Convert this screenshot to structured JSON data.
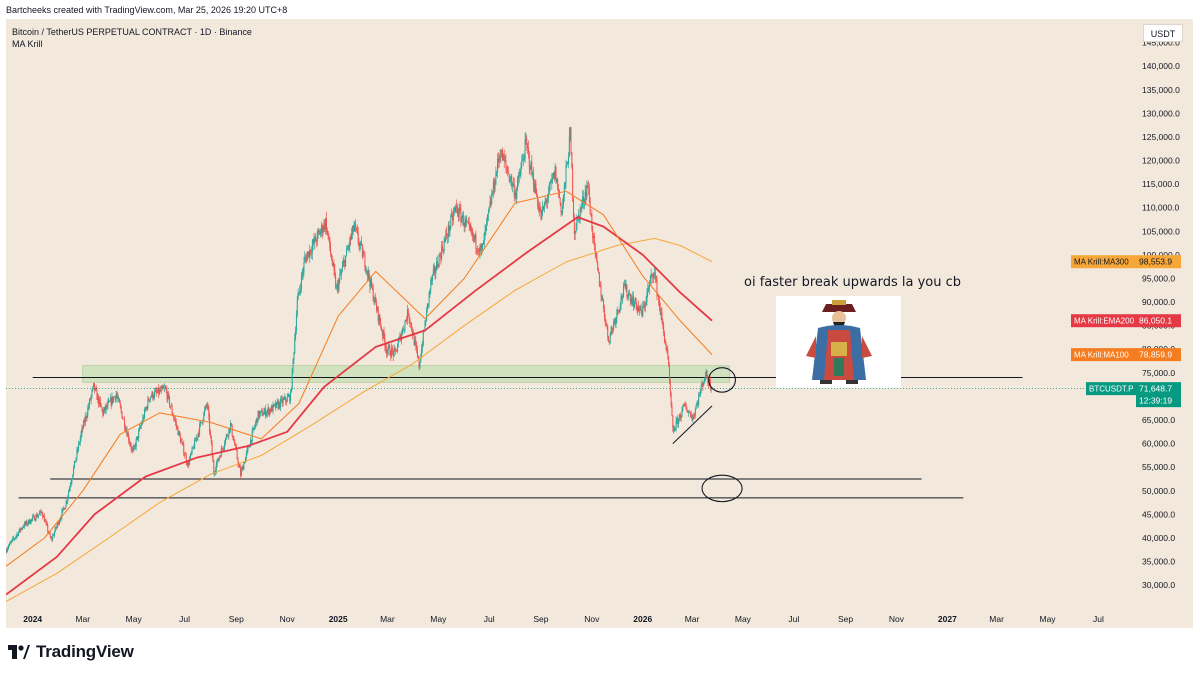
{
  "header": {
    "credit": "Bartcheeks created with TradingView.com, Mar 25, 2026 19:20 UTC+8"
  },
  "chart_info": {
    "symbol_title": "Bitcoin / TetherUS PERPETUAL CONTRACT · 1D · Binance",
    "indicator": "MA Krill",
    "currency": "USDT"
  },
  "annotation": {
    "text": "oi faster break upwards la you cb"
  },
  "footer": {
    "brand": "TradingView"
  },
  "colors": {
    "background": "#f2e8dc",
    "candle_up": "#26a69a",
    "candle_down": "#ef5350",
    "ema200": "#e53946",
    "ma100": "#f57c1f",
    "ma300": "#f7a737",
    "last_price": "#089981",
    "zone": "#c6e0b4"
  },
  "chart_data": {
    "type": "candlestick",
    "title": "Bitcoin / TetherUS PERPETUAL CONTRACT · 1D · Binance",
    "ylabel": "USDT",
    "ylim": [
      26000,
      150000
    ],
    "y_ticks": [
      30000,
      35000,
      40000,
      45000,
      50000,
      55000,
      60000,
      65000,
      70000,
      75000,
      80000,
      85000,
      90000,
      95000,
      100000,
      105000,
      110000,
      115000,
      120000,
      125000,
      130000,
      135000,
      140000,
      145000
    ],
    "y_tick_labels": [
      "30,000.0",
      "35,000.0",
      "40,000.0",
      "45,000.0",
      "50,000.0",
      "55,000.0",
      "60,000.0",
      "65,000.0",
      "70,000.0",
      "75,000.0",
      "80,000.0",
      "85,000.0",
      "90,000.0",
      "95,000.0",
      "100,000.0",
      "105,000.0",
      "110,000.0",
      "115,000.0",
      "120,000.0",
      "125,000.0",
      "130,000.0",
      "135,000.0",
      "140,000.0",
      "145,000.0"
    ],
    "x_ticks": [
      "2024",
      "Mar",
      "May",
      "Jul",
      "Sep",
      "Nov",
      "2025",
      "Mar",
      "May",
      "Jul",
      "Sep",
      "Nov",
      "2026",
      "Mar",
      "May",
      "Jul",
      "Sep",
      "Nov",
      "2027",
      "Mar",
      "May",
      "Jul"
    ],
    "x_tick_dates": [
      "2024-01-01",
      "2024-03-01",
      "2024-05-01",
      "2024-07-01",
      "2024-09-01",
      "2024-11-01",
      "2025-01-01",
      "2025-03-01",
      "2025-05-01",
      "2025-07-01",
      "2025-09-01",
      "2025-11-01",
      "2026-01-01",
      "2026-03-01",
      "2026-05-01",
      "2026-07-01",
      "2026-09-01",
      "2026-11-01",
      "2027-01-01",
      "2027-03-01",
      "2027-05-01",
      "2027-07-01"
    ],
    "x_bold": [
      "2024",
      "2025",
      "2026",
      "2027"
    ],
    "xlim": [
      "2023-11-30",
      "2027-08-15"
    ],
    "price_path": [
      [
        "2023-11-30",
        37500
      ],
      [
        "2023-12-20",
        42500
      ],
      [
        "2024-01-12",
        45500
      ],
      [
        "2024-01-23",
        39500
      ],
      [
        "2024-02-10",
        47500
      ],
      [
        "2024-02-28",
        62000
      ],
      [
        "2024-03-14",
        72000
      ],
      [
        "2024-03-25",
        66500
      ],
      [
        "2024-04-10",
        70500
      ],
      [
        "2024-04-30",
        58000
      ],
      [
        "2024-05-20",
        70000
      ],
      [
        "2024-06-08",
        71500
      ],
      [
        "2024-07-05",
        55500
      ],
      [
        "2024-07-28",
        68500
      ],
      [
        "2024-08-05",
        54000
      ],
      [
        "2024-08-25",
        64000
      ],
      [
        "2024-09-06",
        53500
      ],
      [
        "2024-09-27",
        66000
      ],
      [
        "2024-10-15",
        67500
      ],
      [
        "2024-11-05",
        70000
      ],
      [
        "2024-11-13",
        90000
      ],
      [
        "2024-11-22",
        99000
      ],
      [
        "2024-12-17",
        107000
      ],
      [
        "2024-12-30",
        92500
      ],
      [
        "2025-01-20",
        106000
      ],
      [
        "2025-02-03",
        98000
      ],
      [
        "2025-02-28",
        80000
      ],
      [
        "2025-03-10",
        79000
      ],
      [
        "2025-03-26",
        88000
      ],
      [
        "2025-04-08",
        76500
      ],
      [
        "2025-04-22",
        94000
      ],
      [
        "2025-05-22",
        110000
      ],
      [
        "2025-06-22",
        100500
      ],
      [
        "2025-07-14",
        122000
      ],
      [
        "2025-08-02",
        113000
      ],
      [
        "2025-08-14",
        123500
      ],
      [
        "2025-09-01",
        108000
      ],
      [
        "2025-09-18",
        117500
      ],
      [
        "2025-09-26",
        109000
      ],
      [
        "2025-10-06",
        125500
      ],
      [
        "2025-10-11",
        105000
      ],
      [
        "2025-10-27",
        115000
      ],
      [
        "2025-11-04",
        101000
      ],
      [
        "2025-11-21",
        82000
      ],
      [
        "2025-12-10",
        93000
      ],
      [
        "2025-12-31",
        87500
      ],
      [
        "2026-01-14",
        97000
      ],
      [
        "2026-01-31",
        78000
      ],
      [
        "2026-02-06",
        62500
      ],
      [
        "2026-02-20",
        68000
      ],
      [
        "2026-03-02",
        65500
      ],
      [
        "2026-03-17",
        74800
      ],
      [
        "2026-03-25",
        71648.7
      ]
    ],
    "series": [
      {
        "name": "MA Krill:MA300",
        "last": 98553.9,
        "last_label": "98,553.9",
        "points": [
          [
            "2023-11-30",
            26500
          ],
          [
            "2024-01-30",
            32500
          ],
          [
            "2024-04-01",
            40000
          ],
          [
            "2024-06-01",
            47500
          ],
          [
            "2024-08-01",
            53500
          ],
          [
            "2024-10-01",
            57500
          ],
          [
            "2024-12-01",
            64000
          ],
          [
            "2025-02-01",
            71000
          ],
          [
            "2025-04-01",
            77000
          ],
          [
            "2025-06-01",
            85000
          ],
          [
            "2025-08-01",
            92500
          ],
          [
            "2025-10-01",
            98500
          ],
          [
            "2025-12-01",
            102000
          ],
          [
            "2026-01-15",
            103500
          ],
          [
            "2026-02-15",
            102000
          ],
          [
            "2026-03-25",
            98553.9
          ]
        ]
      },
      {
        "name": "MA Krill:EMA200",
        "last": 86050.1,
        "last_label": "86,050.1",
        "points": [
          [
            "2023-11-30",
            28000
          ],
          [
            "2024-01-30",
            36000
          ],
          [
            "2024-03-15",
            45000
          ],
          [
            "2024-05-15",
            53000
          ],
          [
            "2024-07-15",
            57000
          ],
          [
            "2024-09-15",
            59500
          ],
          [
            "2024-11-01",
            62500
          ],
          [
            "2024-12-15",
            72000
          ],
          [
            "2025-02-15",
            80500
          ],
          [
            "2025-04-15",
            84000
          ],
          [
            "2025-06-15",
            92500
          ],
          [
            "2025-08-15",
            100500
          ],
          [
            "2025-10-15",
            108000
          ],
          [
            "2025-11-15",
            106000
          ],
          [
            "2026-01-01",
            100000
          ],
          [
            "2026-02-15",
            92000
          ],
          [
            "2026-03-25",
            86050.1
          ]
        ]
      },
      {
        "name": "MA Krill:MA100",
        "last": 78859.9,
        "last_label": "78,859.9",
        "points": [
          [
            "2023-11-30",
            34000
          ],
          [
            "2024-01-15",
            40000
          ],
          [
            "2024-03-01",
            50000
          ],
          [
            "2024-04-15",
            62000
          ],
          [
            "2024-06-01",
            66500
          ],
          [
            "2024-08-01",
            64500
          ],
          [
            "2024-10-01",
            61000
          ],
          [
            "2024-11-15",
            68500
          ],
          [
            "2025-01-01",
            87000
          ],
          [
            "2025-02-15",
            96500
          ],
          [
            "2025-04-15",
            86500
          ],
          [
            "2025-06-01",
            95000
          ],
          [
            "2025-08-01",
            111000
          ],
          [
            "2025-10-01",
            113500
          ],
          [
            "2025-11-15",
            108500
          ],
          [
            "2026-01-01",
            95500
          ],
          [
            "2026-02-15",
            86000
          ],
          [
            "2026-03-25",
            78859.9
          ]
        ]
      }
    ],
    "last_price": {
      "name": "BTCUSDT.P",
      "value": 71648.7,
      "label": "71,648.7",
      "countdown": "12:39:19"
    },
    "zone": {
      "from": "2024-03-01",
      "to": "2026-04-15",
      "low": 73000,
      "high": 76500
    },
    "hlines": [
      {
        "value": 74000,
        "from": "2024-01-01",
        "to": "2027-04-01"
      },
      {
        "value": 52500,
        "from": "2024-01-22",
        "to": "2026-12-01"
      },
      {
        "value": 48500,
        "from": "2023-12-15",
        "to": "2027-01-20"
      }
    ],
    "trendline": {
      "from": [
        "2026-02-06",
        60000
      ],
      "to": [
        "2026-03-25",
        68000
      ]
    },
    "ellipses": [
      {
        "center": [
          "2026-04-06",
          73500
        ],
        "rx_days": 16,
        "ry": 2600
      },
      {
        "center": [
          "2026-04-06",
          50500
        ],
        "rx_days": 24,
        "ry": 2800
      }
    ]
  }
}
